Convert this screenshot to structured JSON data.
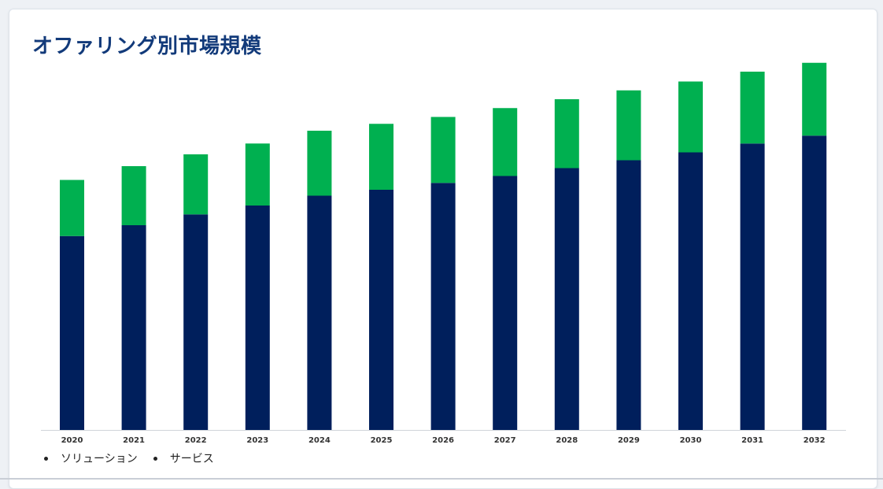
{
  "header": {
    "title": "オファリング別市場規模"
  },
  "colors": {
    "solution": "#001f5c",
    "service": "#00b050",
    "title": "#123a7a",
    "axis": "#d0d4da"
  },
  "legend": {
    "items": [
      "ソリューション",
      "サービス"
    ]
  },
  "chart_data": {
    "type": "bar",
    "stacked": true,
    "title": "オファリング別市場規模",
    "xlabel": "",
    "ylabel": "",
    "categories": [
      "2020",
      "2021",
      "2022",
      "2023",
      "2024",
      "2025",
      "2026",
      "2027",
      "2028",
      "2029",
      "2030",
      "2031",
      "2032"
    ],
    "series": [
      {
        "name": "ソリューション",
        "values": [
          197,
          208,
          219,
          228,
          238,
          244,
          251,
          258,
          266,
          274,
          282,
          291,
          299
        ]
      },
      {
        "name": "サービス",
        "values": [
          57,
          60,
          61,
          63,
          66,
          67,
          67,
          69,
          70,
          71,
          72,
          73,
          74
        ]
      }
    ],
    "ylim": [
      0,
      400
    ],
    "grid": false,
    "legend_position": "bottom-left"
  }
}
